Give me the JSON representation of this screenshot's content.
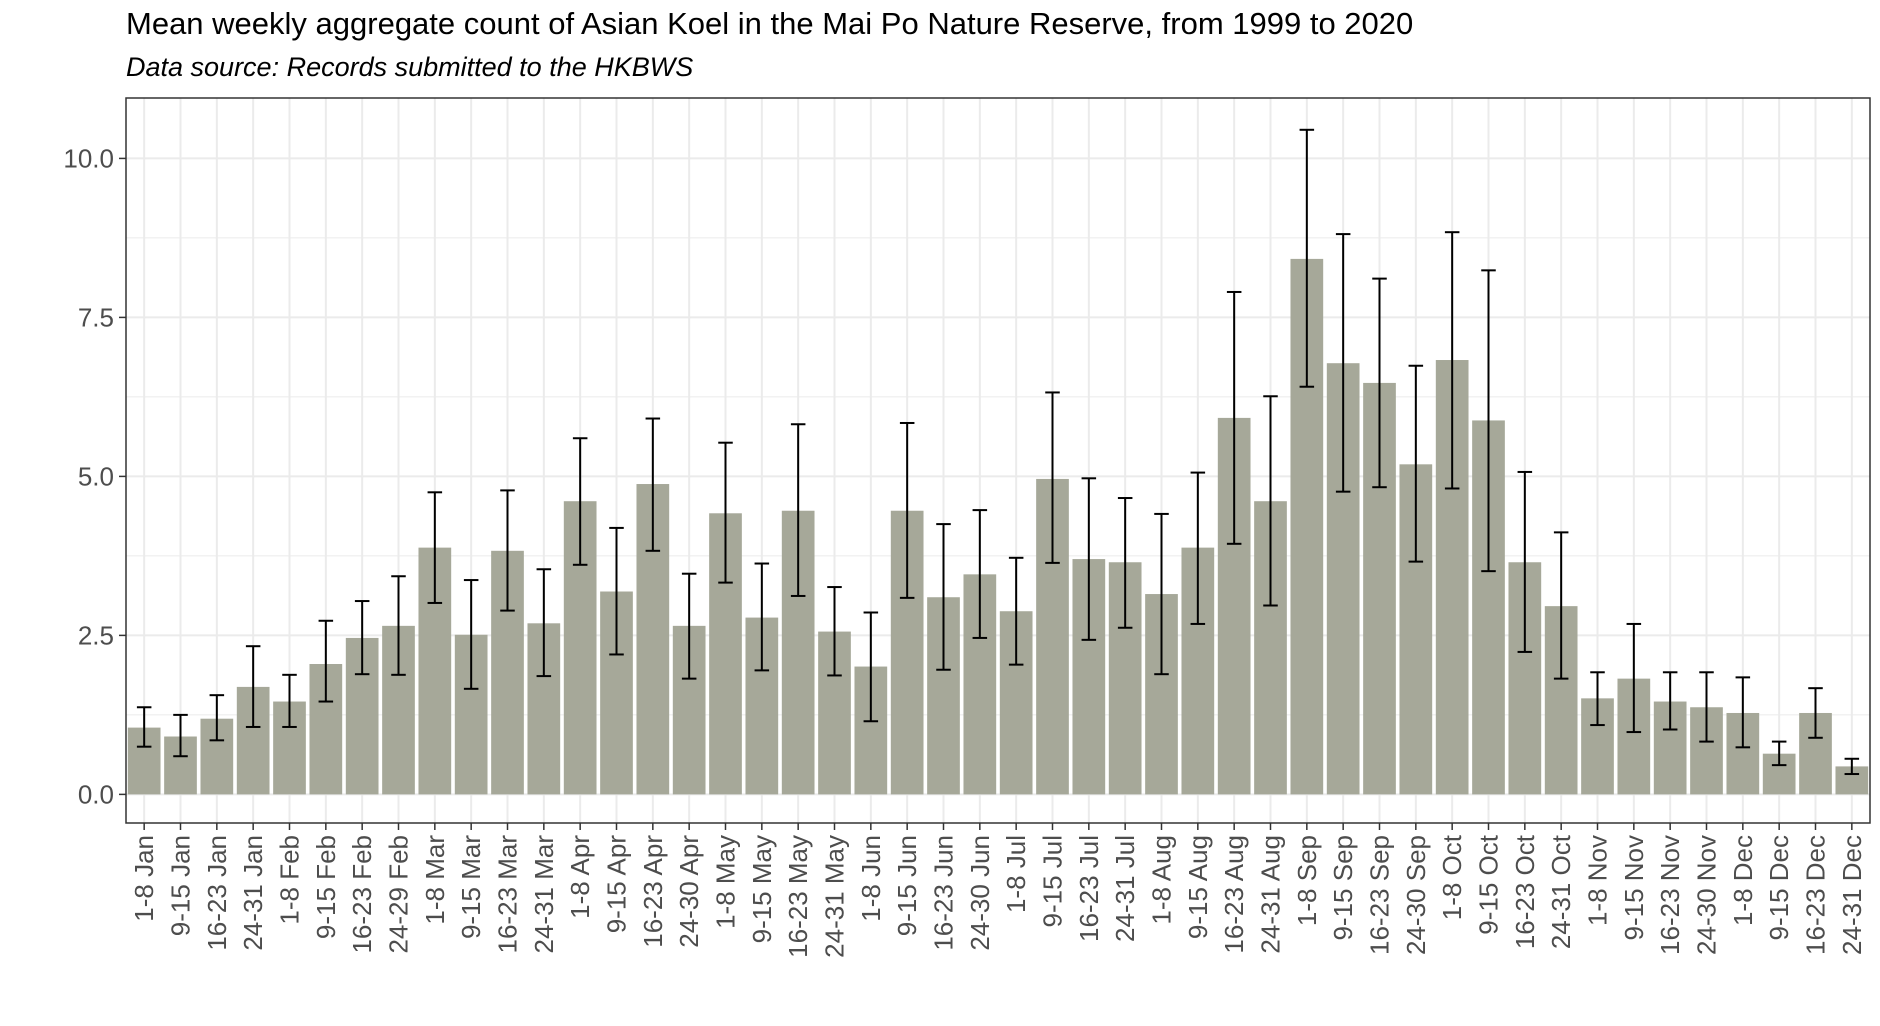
{
  "chart_data": {
    "type": "bar",
    "title": "Mean weekly aggregate count of Asian Koel in the Mai Po Nature Reserve, from 1999 to 2020",
    "subtitle": "Data source: Records submitted to the HKBWS",
    "xlabel": "",
    "ylabel": "",
    "ylim": [
      -0.45,
      10.95
    ],
    "yticks": [
      0.0,
      2.5,
      5.0,
      7.5,
      10.0
    ],
    "ytick_labels": [
      "0.0",
      "2.5",
      "5.0",
      "7.5",
      "10.0"
    ],
    "grid": true,
    "legend": "none",
    "categories": [
      "1-8 Jan",
      "9-15 Jan",
      "16-23 Jan",
      "24-31 Jan",
      "1-8 Feb",
      "9-15 Feb",
      "16-23 Feb",
      "24-29 Feb",
      "1-8 Mar",
      "9-15 Mar",
      "16-23 Mar",
      "24-31 Mar",
      "1-8 Apr",
      "9-15 Apr",
      "16-23 Apr",
      "24-30 Apr",
      "1-8 May",
      "9-15 May",
      "16-23 May",
      "24-31 May",
      "1-8 Jun",
      "9-15 Jun",
      "16-23 Jun",
      "24-30 Jun",
      "1-8 Jul",
      "9-15 Jul",
      "16-23 Jul",
      "24-31 Jul",
      "1-8 Aug",
      "9-15 Aug",
      "16-23 Aug",
      "24-31 Aug",
      "1-8 Sep",
      "9-15 Sep",
      "16-23 Sep",
      "24-30 Sep",
      "1-8 Oct",
      "9-15 Oct",
      "16-23 Oct",
      "24-31 Oct",
      "1-8 Nov",
      "9-15 Nov",
      "16-23 Nov",
      "24-30 Nov",
      "1-8 Dec",
      "9-15 Dec",
      "16-23 Dec",
      "24-31 Dec"
    ],
    "values": [
      1.05,
      0.91,
      1.19,
      1.69,
      1.46,
      2.05,
      2.46,
      2.65,
      3.88,
      2.51,
      3.83,
      2.69,
      4.61,
      3.19,
      4.88,
      2.65,
      4.42,
      2.78,
      4.46,
      2.56,
      2.01,
      4.46,
      3.1,
      3.46,
      2.88,
      4.96,
      3.7,
      3.65,
      3.15,
      3.88,
      5.92,
      4.61,
      8.42,
      6.78,
      6.47,
      5.19,
      6.83,
      5.88,
      3.65,
      2.96,
      1.51,
      1.82,
      1.46,
      1.37,
      1.28,
      0.64,
      1.28,
      0.44
    ],
    "error_lower": [
      0.75,
      0.6,
      0.85,
      1.06,
      1.06,
      1.46,
      1.89,
      1.88,
      3.01,
      1.66,
      2.89,
      1.86,
      3.61,
      2.2,
      3.83,
      1.82,
      3.33,
      1.95,
      3.12,
      1.87,
      1.15,
      3.09,
      1.96,
      2.46,
      2.04,
      3.64,
      2.43,
      2.62,
      1.89,
      2.68,
      3.94,
      2.97,
      6.41,
      4.76,
      4.83,
      3.66,
      4.81,
      3.51,
      2.24,
      1.82,
      1.09,
      0.98,
      1.02,
      0.83,
      0.74,
      0.46,
      0.89,
      0.32
    ],
    "error_upper": [
      1.37,
      1.25,
      1.56,
      2.33,
      1.88,
      2.73,
      3.04,
      3.43,
      4.75,
      3.37,
      4.78,
      3.54,
      5.6,
      4.19,
      5.91,
      3.47,
      5.53,
      3.63,
      5.82,
      3.26,
      2.86,
      5.84,
      4.25,
      4.47,
      3.72,
      6.32,
      4.97,
      4.66,
      4.41,
      5.06,
      7.9,
      6.26,
      10.45,
      8.81,
      8.11,
      6.74,
      8.84,
      8.24,
      5.07,
      4.12,
      1.92,
      2.68,
      1.92,
      1.92,
      1.84,
      0.83,
      1.67,
      0.56
    ],
    "colors": {
      "bar": "#a6a899",
      "error_bar": "#000000",
      "grid": "#ebebeb",
      "panel_border": "#333333",
      "tick_text": "#4d4d4d"
    }
  }
}
